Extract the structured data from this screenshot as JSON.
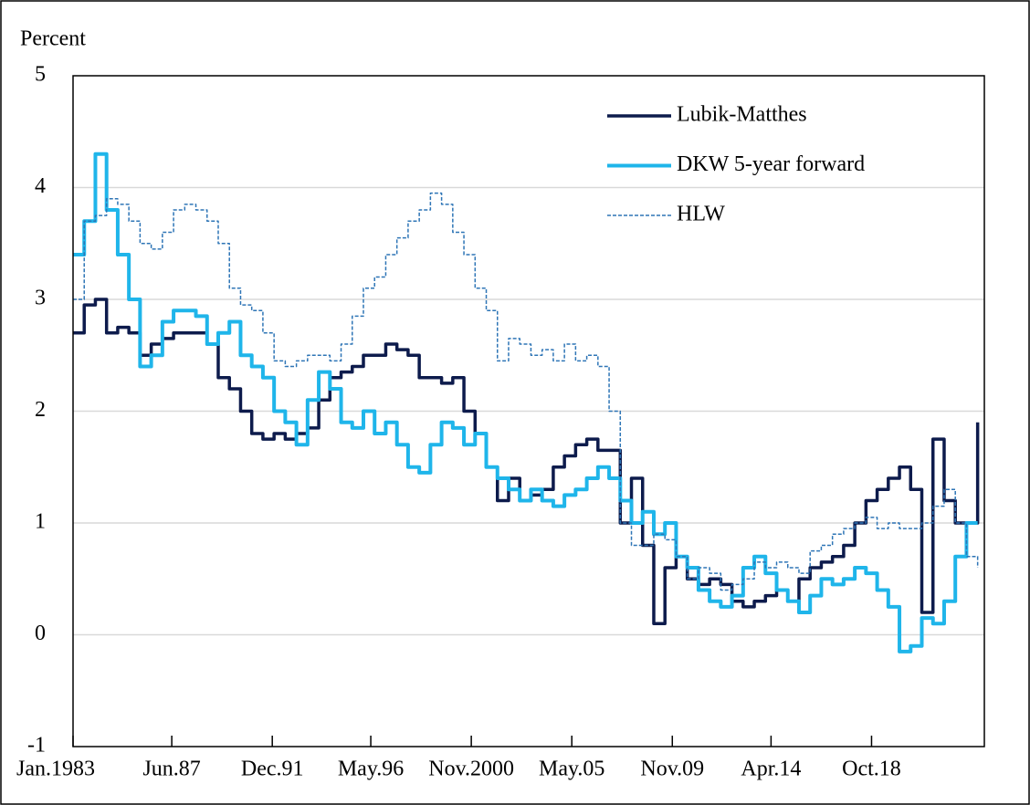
{
  "chart_data": {
    "type": "line",
    "step": true,
    "y_label": "Percent",
    "xlim": [
      1983.0,
      2023.8
    ],
    "xticks": [
      {
        "value": 1983.0,
        "label": "Jan.1983"
      },
      {
        "value": 1987.42,
        "label": "Jun.87"
      },
      {
        "value": 1991.92,
        "label": "Dec.91"
      },
      {
        "value": 1996.33,
        "label": "May.96"
      },
      {
        "value": 2000.83,
        "label": "Nov.2000"
      },
      {
        "value": 2005.33,
        "label": "May.05"
      },
      {
        "value": 2009.83,
        "label": "Nov.09"
      },
      {
        "value": 2014.25,
        "label": "Apr.14"
      },
      {
        "value": 2018.75,
        "label": "Oct.18"
      }
    ],
    "ylim": [
      -1,
      5
    ],
    "yticks": [
      -1,
      0,
      1,
      2,
      3,
      4,
      5
    ],
    "grid": true,
    "legend": "upper right",
    "x": [
      1983.0,
      1983.5,
      1984.0,
      1984.5,
      1985.0,
      1985.5,
      1986.0,
      1986.5,
      1987.0,
      1987.5,
      1988.0,
      1988.5,
      1989.0,
      1989.5,
      1990.0,
      1990.5,
      1991.0,
      1991.5,
      1992.0,
      1992.5,
      1993.0,
      1993.5,
      1994.0,
      1994.5,
      1995.0,
      1995.5,
      1996.0,
      1996.5,
      1997.0,
      1997.5,
      1998.0,
      1998.5,
      1999.0,
      1999.5,
      2000.0,
      2000.5,
      2001.0,
      2001.5,
      2002.0,
      2002.5,
      2003.0,
      2003.5,
      2004.0,
      2004.5,
      2005.0,
      2005.5,
      2006.0,
      2006.5,
      2007.0,
      2007.5,
      2008.0,
      2008.5,
      2009.0,
      2009.5,
      2010.0,
      2010.5,
      2011.0,
      2011.5,
      2012.0,
      2012.5,
      2013.0,
      2013.5,
      2014.0,
      2014.5,
      2015.0,
      2015.5,
      2016.0,
      2016.5,
      2017.0,
      2017.5,
      2018.0,
      2018.5,
      2019.0,
      2019.5,
      2020.0,
      2020.5,
      2021.0,
      2021.5,
      2022.0,
      2022.5,
      2023.0,
      2023.5
    ],
    "series": [
      {
        "name": "Lubik-Matthes",
        "color": "#0d1b4c",
        "width": 3.5,
        "dashed": false,
        "values": [
          2.7,
          2.95,
          3.0,
          2.7,
          2.75,
          2.7,
          2.5,
          2.6,
          2.65,
          2.7,
          2.7,
          2.7,
          2.6,
          2.3,
          2.2,
          2.0,
          1.8,
          1.75,
          1.8,
          1.75,
          1.8,
          1.85,
          2.1,
          2.3,
          2.35,
          2.4,
          2.5,
          2.5,
          2.6,
          2.55,
          2.5,
          2.3,
          2.3,
          2.25,
          2.3,
          2.0,
          1.8,
          1.5,
          1.2,
          1.4,
          1.2,
          1.25,
          1.3,
          1.5,
          1.6,
          1.7,
          1.75,
          1.65,
          1.65,
          1.0,
          1.4,
          0.8,
          0.1,
          0.6,
          0.7,
          0.5,
          0.45,
          0.5,
          0.45,
          0.3,
          0.25,
          0.3,
          0.35,
          0.4,
          0.3,
          0.5,
          0.6,
          0.65,
          0.7,
          0.8,
          1.0,
          1.2,
          1.3,
          1.4,
          1.5,
          1.3,
          0.2,
          1.75,
          1.2,
          1.0,
          1.0,
          1.9
        ]
      },
      {
        "name": "DKW 5-year forward",
        "color": "#1fb5ea",
        "width": 4,
        "dashed": false,
        "values": [
          3.4,
          3.7,
          4.3,
          3.8,
          3.4,
          3.0,
          2.4,
          2.5,
          2.8,
          2.9,
          2.9,
          2.85,
          2.6,
          2.7,
          2.8,
          2.5,
          2.4,
          2.3,
          2.0,
          1.9,
          1.7,
          2.1,
          2.35,
          2.2,
          1.9,
          1.85,
          2.0,
          1.8,
          1.9,
          1.7,
          1.5,
          1.45,
          1.7,
          1.9,
          1.85,
          1.7,
          1.8,
          1.5,
          1.4,
          1.3,
          1.2,
          1.3,
          1.2,
          1.15,
          1.25,
          1.3,
          1.4,
          1.5,
          1.4,
          1.2,
          1.0,
          1.1,
          0.9,
          1.0,
          0.7,
          0.6,
          0.4,
          0.3,
          0.25,
          0.35,
          0.6,
          0.7,
          0.55,
          0.4,
          0.3,
          0.2,
          0.35,
          0.5,
          0.45,
          0.5,
          0.6,
          0.55,
          0.4,
          0.25,
          -0.15,
          -0.1,
          0.15,
          0.1,
          0.3,
          0.7,
          1.0,
          1.0
        ]
      },
      {
        "name": "HLW",
        "color": "#2e75b6",
        "width": 1.5,
        "dashed": true,
        "values": [
          3.0,
          3.7,
          3.75,
          3.9,
          3.85,
          3.7,
          3.5,
          3.45,
          3.6,
          3.8,
          3.85,
          3.8,
          3.7,
          3.5,
          3.1,
          2.95,
          2.9,
          2.7,
          2.45,
          2.4,
          2.45,
          2.5,
          2.5,
          2.45,
          2.6,
          2.85,
          3.1,
          3.2,
          3.4,
          3.55,
          3.7,
          3.8,
          3.95,
          3.85,
          3.6,
          3.4,
          3.1,
          2.9,
          2.45,
          2.65,
          2.6,
          2.5,
          2.55,
          2.45,
          2.6,
          2.45,
          2.5,
          2.4,
          2.0,
          1.0,
          0.8,
          0.8,
          0.9,
          0.85,
          0.7,
          0.5,
          0.6,
          0.55,
          0.4,
          0.45,
          0.5,
          0.65,
          0.6,
          0.65,
          0.6,
          0.55,
          0.75,
          0.8,
          0.9,
          0.95,
          1.0,
          1.05,
          0.95,
          1.0,
          0.95,
          0.95,
          1.0,
          1.15,
          1.3,
          1.0,
          0.7,
          0.6
        ]
      }
    ]
  }
}
